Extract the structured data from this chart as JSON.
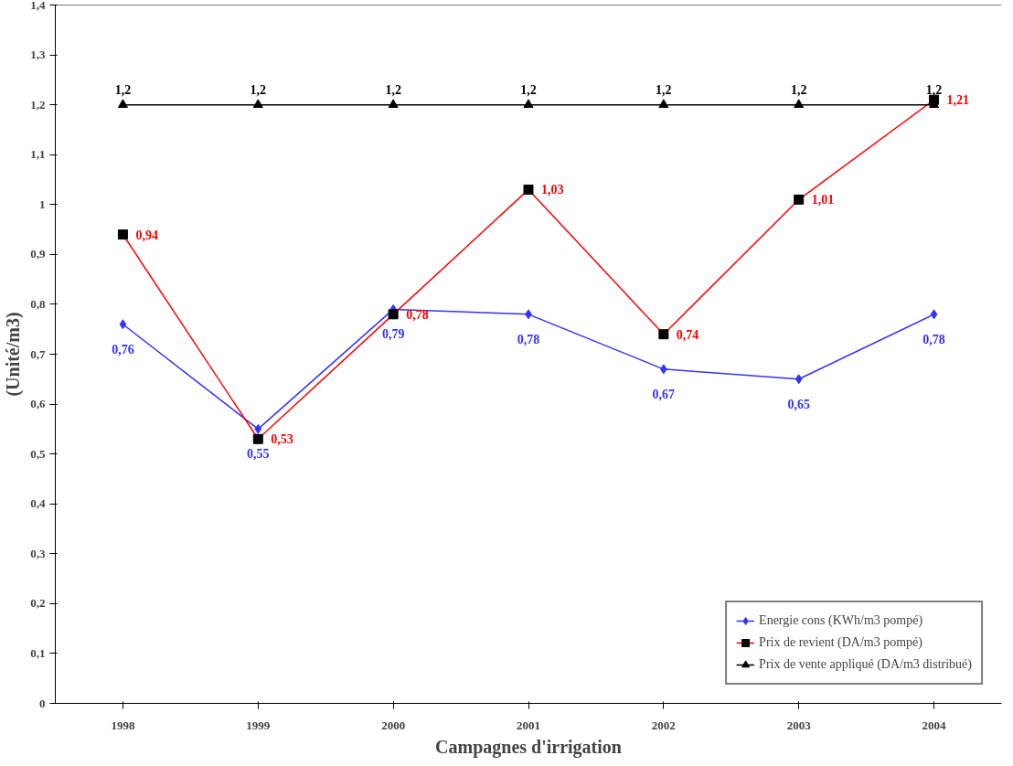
{
  "chart_data": {
    "type": "line",
    "xlabel": "Campagnes d'irrigation",
    "ylabel": "(Unité/m3)",
    "categories": [
      "1998",
      "1999",
      "2000",
      "2001",
      "2002",
      "2003",
      "2004"
    ],
    "ylim": [
      0,
      1.4
    ],
    "yticks": [
      0,
      {
        "value": 0.1,
        "label": "0,1"
      },
      {
        "value": 0.2,
        "label": "0,2"
      },
      {
        "value": 0.3,
        "label": "0,3"
      },
      {
        "value": 0.4,
        "label": "0,4"
      },
      {
        "value": 0.5,
        "label": "0,5"
      },
      {
        "value": 0.6,
        "label": "0,6"
      },
      {
        "value": 0.7,
        "label": "0,7"
      },
      {
        "value": 0.8,
        "label": "0,8"
      },
      {
        "value": 0.9,
        "label": "0,9"
      },
      1,
      {
        "value": 1.1,
        "label": "1,1"
      },
      {
        "value": 1.2,
        "label": "1,2"
      },
      {
        "value": 1.3,
        "label": "1,3"
      },
      {
        "value": 1.4,
        "label": "1,4"
      }
    ],
    "grid": false,
    "legend": "bottom right",
    "series": [
      {
        "name": "Energie cons (KWh/m3 pompé)",
        "color": "#3333ff",
        "marker": "diamond",
        "values": [
          0.76,
          0.55,
          0.79,
          0.78,
          0.67,
          0.65,
          0.78
        ],
        "value_labels": [
          "0,76",
          "0,55",
          "0,79",
          "0,78",
          "0,67",
          "0,65",
          "0,78"
        ]
      },
      {
        "name": "Prix de revient (DA/m3 pompé)",
        "color": "#ff0000",
        "marker": "square",
        "values": [
          0.94,
          0.53,
          0.78,
          1.03,
          0.74,
          1.01,
          1.21
        ],
        "value_labels": [
          "0,94",
          "0,53",
          "0,78",
          "1,03",
          "0,74",
          "1,01",
          "1,21"
        ]
      },
      {
        "name": "Prix de vente appliqué (DA/m3 distribué)",
        "color": "#000000",
        "marker": "triangle",
        "values": [
          1.2,
          1.2,
          1.2,
          1.2,
          1.2,
          1.2,
          1.2
        ],
        "value_labels": [
          "1,2",
          "1,2",
          "1,2",
          "1,2",
          "1,2",
          "1,2",
          "1,2"
        ]
      }
    ]
  }
}
